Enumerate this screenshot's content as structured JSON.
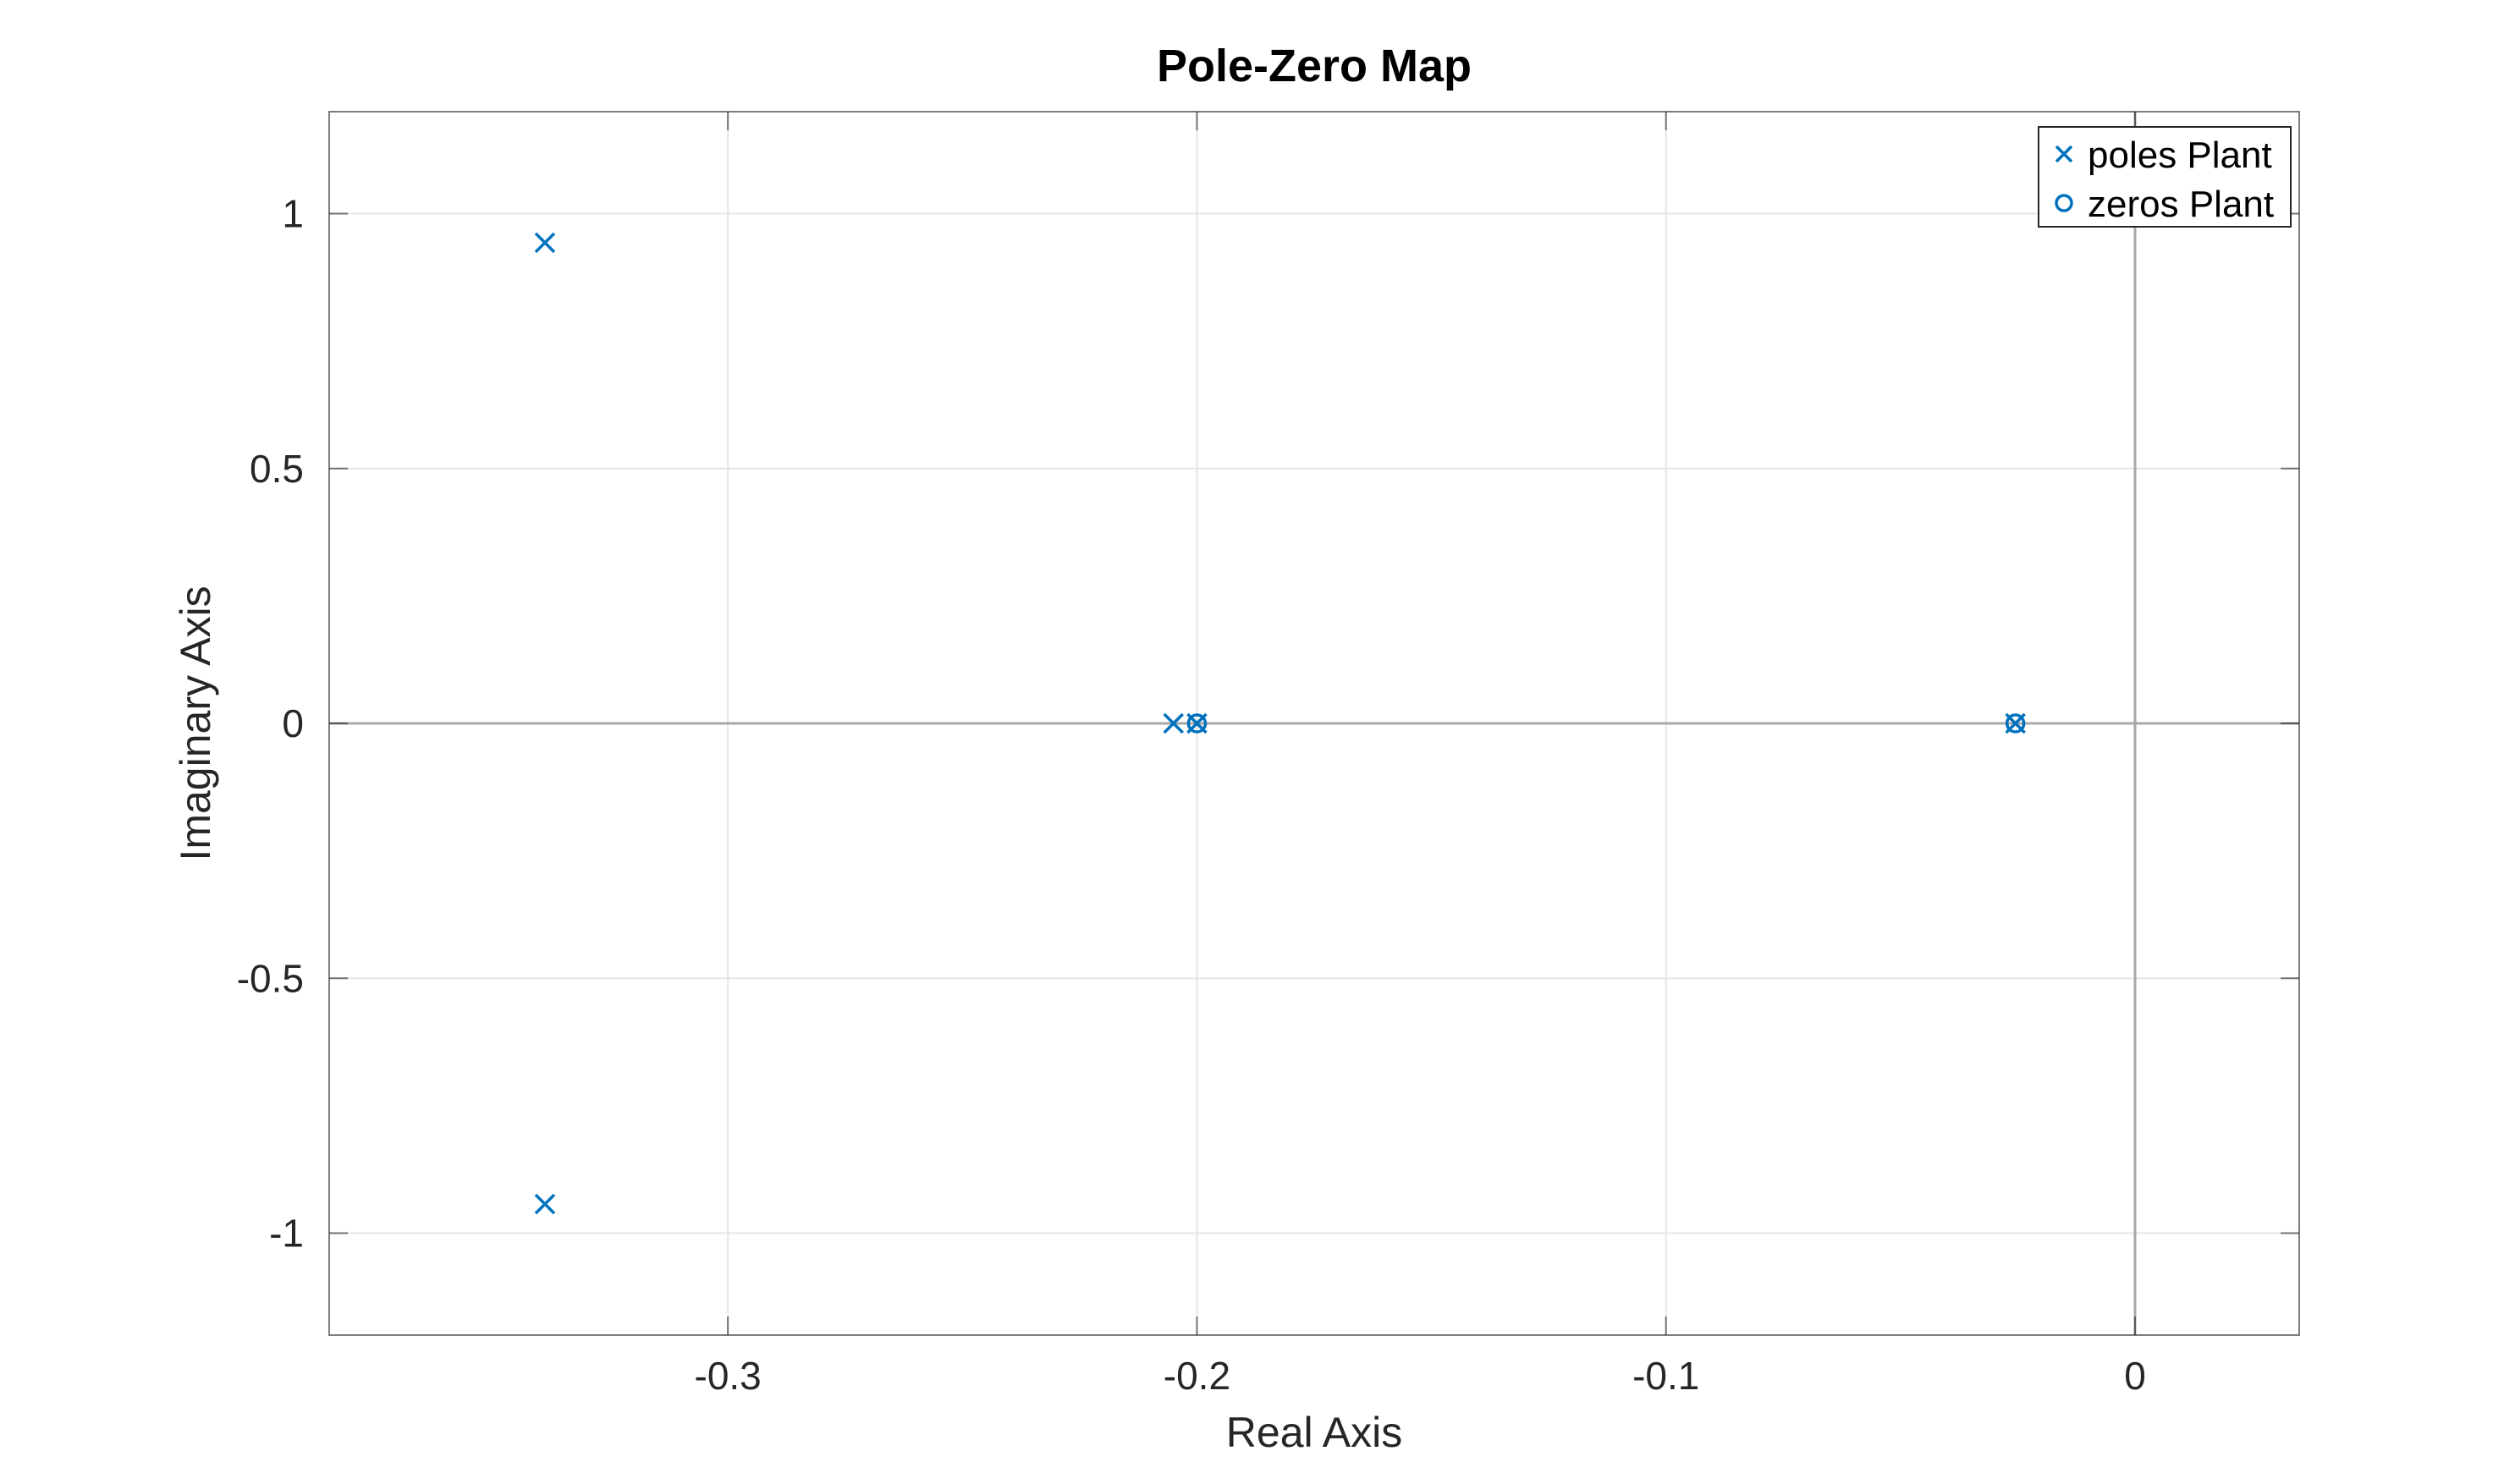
{
  "chart_data": {
    "type": "scatter",
    "title": "Pole-Zero Map",
    "xlabel": "Real Axis",
    "ylabel": "Imaginary Axis",
    "xlim": [
      -0.385,
      0.035
    ],
    "ylim": [
      -1.2,
      1.2
    ],
    "xticks": [
      -0.3,
      -0.2,
      -0.1,
      0
    ],
    "xtick_labels": [
      "-0.3",
      "-0.2",
      "-0.1",
      "0"
    ],
    "yticks": [
      -1,
      -0.5,
      0,
      0.5,
      1
    ],
    "ytick_labels": [
      "-1",
      "-0.5",
      "0",
      "0.5",
      "1"
    ],
    "grid": true,
    "legend_position": "top-right",
    "series": [
      {
        "name": "poles Plant",
        "marker": "x",
        "color": "#0072BD",
        "points": [
          {
            "x": -0.339,
            "y": 0.943
          },
          {
            "x": -0.339,
            "y": -0.943
          },
          {
            "x": -0.205,
            "y": 0
          },
          {
            "x": -0.2,
            "y": 0
          },
          {
            "x": -0.0255,
            "y": 0
          }
        ]
      },
      {
        "name": "zeros Plant",
        "marker": "o",
        "color": "#0072BD",
        "points": [
          {
            "x": -0.2,
            "y": 0
          },
          {
            "x": -0.0255,
            "y": 0
          }
        ]
      }
    ]
  }
}
